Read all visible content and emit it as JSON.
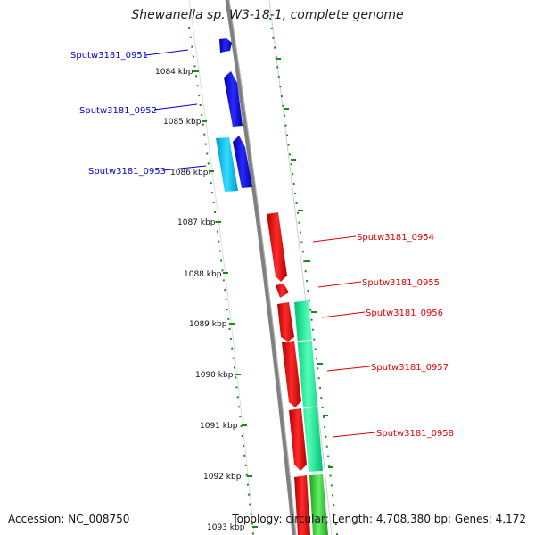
{
  "title": "Shewanella sp. W3-18-1, complete genome",
  "footer": {
    "accession": "Accession: NC_008750",
    "stats": "Topology: circular; Length: 4,708,380 bp; Genes: 4,172"
  },
  "colors": {
    "plus_cds": "#e00000",
    "minus_cds": "#0000dd",
    "gc_skew": "#00dd88",
    "cyan_band": "#00bbee",
    "tick": "#007700",
    "backbone": "#808080"
  },
  "ticks": [
    "1084 kbp",
    "1085 kbp",
    "1086 kbp",
    "1087 kbp",
    "1088 kbp",
    "1089 kbp",
    "1090 kbp",
    "1091 kbp",
    "1092 kbp",
    "1093 kbp"
  ],
  "genes_left": [
    "Sputw3181_0951",
    "Sputw3181_0952",
    "Sputw3181_0953"
  ],
  "genes_right": [
    "Sputw3181_0954",
    "Sputw3181_0955",
    "Sputw3181_0956",
    "Sputw3181_0957",
    "Sputw3181_0958"
  ]
}
